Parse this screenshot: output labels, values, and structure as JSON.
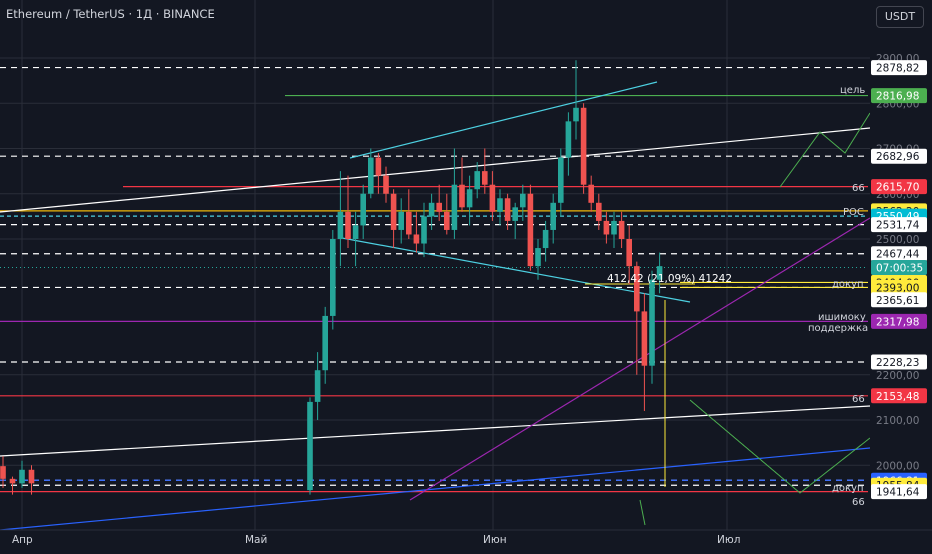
{
  "header": {
    "title": "Ethereum / TetherUS · 1Д · BINANCE",
    "currency": "USDT"
  },
  "colors": {
    "bg": "#131722",
    "up": "#26a69a",
    "down": "#ef5350",
    "grid": "#2a2e39",
    "text": "#d1d4dc",
    "white_dash": "#ffffff",
    "cyan": "#4dd0e1",
    "green": "#4caf50",
    "red": "#f23645",
    "purple": "#9c27b0",
    "yellow": "#ffeb3b",
    "blue": "#2962ff"
  },
  "chart_data": {
    "type": "candlestick",
    "x": [
      "Апр",
      "Май",
      "Июн",
      "Июл"
    ],
    "ylim": [
      1925,
      2918
    ],
    "y_ticks": [
      2000,
      2100,
      2200,
      2500,
      2600,
      2700,
      2800,
      2900
    ],
    "y_tick_labels": [
      "2000,00",
      "2100,00",
      "2200,00",
      "2500,00",
      "2600,00",
      "2700,00",
      "2800,00",
      "2900,00"
    ],
    "price_labels": [
      {
        "text": "2878,82",
        "value": 2878.82,
        "style": "white"
      },
      {
        "text": "2816,98",
        "value": 2816.98,
        "style": "green"
      },
      {
        "text": "2682,96",
        "value": 2682.96,
        "style": "white"
      },
      {
        "text": "2615,70",
        "value": 2615.7,
        "style": "red"
      },
      {
        "text": "2562,20",
        "value": 2562.2,
        "style": "yellow"
      },
      {
        "text": "2550,49",
        "value": 2550.49,
        "style": "cyan"
      },
      {
        "text": "2531,74",
        "value": 2531.74,
        "style": "white"
      },
      {
        "text": "2467,44",
        "value": 2467.44,
        "style": "white"
      },
      {
        "text": "07:00:35",
        "value": 2437,
        "style": "teal"
      },
      {
        "text": "2404,00",
        "value": 2404.0,
        "style": "yellow"
      },
      {
        "text": "2393,00",
        "value": 2393.0,
        "style": "yellow"
      },
      {
        "text": "2365,61",
        "value": 2365.61,
        "style": "white"
      },
      {
        "text": "2317,98",
        "value": 2317.98,
        "style": "purple"
      },
      {
        "text": "2228,23",
        "value": 2228.23,
        "style": "white"
      },
      {
        "text": "2153,48",
        "value": 2153.48,
        "style": "red"
      },
      {
        "text": "1966,81",
        "value": 1966.81,
        "style": "blue"
      },
      {
        "text": "1955,84",
        "value": 1955.84,
        "style": "yellow"
      },
      {
        "text": "1941,64",
        "value": 1941.64,
        "style": "white"
      }
    ],
    "dashed_levels": [
      2878.82,
      2682.96,
      2531.74,
      2467.44,
      2393.0,
      2228.23,
      1966.81,
      1955.84
    ],
    "annotations": {
      "target": "цель",
      "poc": "POC",
      "dokup_top": "докуп",
      "ichimoku": "ишимоку",
      "support": "поддержка",
      "dokup_bottom": "докуп",
      "sixty_six_1": "66",
      "sixty_six_2": "66",
      "sixty_six_3": "66",
      "measure": "412,42 (21,09%) 41242"
    },
    "candles": [
      [
        1998,
        2020,
        1950,
        1970
      ],
      [
        1970,
        1975,
        1935,
        1960
      ],
      [
        1960,
        2010,
        1950,
        1990
      ],
      [
        1990,
        2000,
        1935,
        1960
      ],
      [
        1945,
        2150,
        1935,
        2140
      ],
      [
        2140,
        2250,
        2100,
        2210
      ],
      [
        2210,
        2350,
        2180,
        2330
      ],
      [
        2330,
        2520,
        2300,
        2500
      ],
      [
        2500,
        2650,
        2440,
        2560
      ],
      [
        2560,
        2640,
        2480,
        2500
      ],
      [
        2500,
        2560,
        2440,
        2530
      ],
      [
        2530,
        2620,
        2500,
        2600
      ],
      [
        2600,
        2700,
        2590,
        2680
      ],
      [
        2680,
        2690,
        2600,
        2640
      ],
      [
        2640,
        2660,
        2580,
        2600
      ],
      [
        2600,
        2610,
        2480,
        2520
      ],
      [
        2520,
        2590,
        2490,
        2560
      ],
      [
        2560,
        2610,
        2500,
        2510
      ],
      [
        2510,
        2560,
        2470,
        2490
      ],
      [
        2490,
        2580,
        2460,
        2550
      ],
      [
        2550,
        2600,
        2520,
        2580
      ],
      [
        2580,
        2620,
        2540,
        2560
      ],
      [
        2560,
        2600,
        2510,
        2520
      ],
      [
        2520,
        2700,
        2500,
        2620
      ],
      [
        2620,
        2680,
        2560,
        2570
      ],
      [
        2570,
        2640,
        2530,
        2610
      ],
      [
        2610,
        2670,
        2590,
        2650
      ],
      [
        2650,
        2700,
        2600,
        2620
      ],
      [
        2620,
        2650,
        2540,
        2560
      ],
      [
        2560,
        2610,
        2530,
        2590
      ],
      [
        2590,
        2600,
        2520,
        2540
      ],
      [
        2540,
        2580,
        2500,
        2570
      ],
      [
        2570,
        2620,
        2540,
        2600
      ],
      [
        2600,
        2620,
        2430,
        2440
      ],
      [
        2440,
        2500,
        2410,
        2480
      ],
      [
        2480,
        2540,
        2450,
        2520
      ],
      [
        2520,
        2600,
        2490,
        2580
      ],
      [
        2580,
        2700,
        2550,
        2680
      ],
      [
        2680,
        2780,
        2640,
        2760
      ],
      [
        2760,
        2895,
        2720,
        2790
      ],
      [
        2790,
        2800,
        2600,
        2620
      ],
      [
        2620,
        2640,
        2560,
        2580
      ],
      [
        2580,
        2600,
        2520,
        2540
      ],
      [
        2540,
        2560,
        2490,
        2510
      ],
      [
        2510,
        2560,
        2480,
        2540
      ],
      [
        2540,
        2560,
        2480,
        2500
      ],
      [
        2500,
        2530,
        2400,
        2440
      ],
      [
        2440,
        2450,
        2200,
        2340
      ],
      [
        2340,
        2380,
        2120,
        2220
      ],
      [
        2220,
        2430,
        2180,
        2410
      ],
      [
        2410,
        2470,
        2380,
        2440
      ]
    ]
  }
}
